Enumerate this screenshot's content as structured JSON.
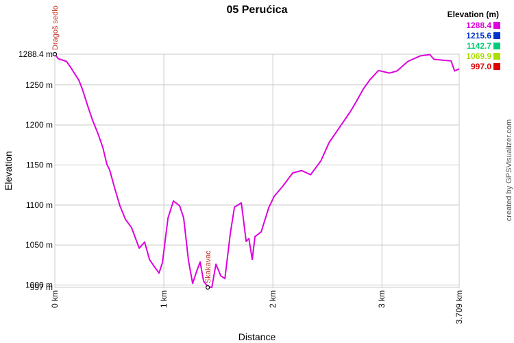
{
  "chart_data": {
    "type": "line",
    "title": "05 Perućica",
    "xlabel": "Distance",
    "ylabel": "Elevation",
    "x": [
      0,
      0.031,
      0.107,
      0.151,
      0.182,
      0.22,
      0.252,
      0.302,
      0.346,
      0.396,
      0.44,
      0.478,
      0.503,
      0.547,
      0.597,
      0.648,
      0.704,
      0.774,
      0.824,
      0.868,
      0.918,
      0.956,
      0.987,
      1.038,
      1.088,
      1.145,
      1.182,
      1.226,
      1.264,
      1.302,
      1.333,
      1.365,
      1.403,
      1.44,
      1.478,
      1.522,
      1.56,
      1.61,
      1.648,
      1.711,
      1.755,
      1.78,
      1.811,
      1.836,
      1.893,
      1.962,
      2.013,
      2.088,
      2.182,
      2.264,
      2.346,
      2.44,
      2.516,
      2.629,
      2.711,
      2.767,
      2.83,
      2.893,
      2.969,
      3.069,
      3.138,
      3.239,
      3.352,
      3.44,
      3.478,
      3.553,
      3.635,
      3.667,
      3.709
    ],
    "series": [
      {
        "values": [
          1288.4,
          1282.8,
          1279.4,
          1270.8,
          1264,
          1256,
          1245,
          1223.6,
          1206,
          1189,
          1172,
          1150.6,
          1143.8,
          1122,
          1099,
          1082,
          1071.7,
          1046,
          1053.7,
          1032,
          1021.9,
          1015,
          1028,
          1083.7,
          1105,
          1099,
          1083.7,
          1030.5,
          1002,
          1017.6,
          1028.8,
          1004.7,
          998,
          997,
          1026,
          1011.6,
          1008,
          1064.8,
          1097.4,
          1102.6,
          1054.5,
          1058,
          1032,
          1060.5,
          1066.5,
          1096.6,
          1111,
          1123,
          1140,
          1143,
          1137.8,
          1155,
          1178,
          1200.4,
          1216.7,
          1229.6,
          1245,
          1257,
          1268,
          1264.8,
          1267.4,
          1279.4,
          1286.3,
          1288,
          1282,
          1281,
          1280,
          1267.4,
          1270
        ]
      }
    ],
    "xlim": [
      0,
      3.709
    ],
    "xticks": [
      {
        "value": 0,
        "label": "0 km"
      },
      {
        "value": 1,
        "label": "1 km"
      },
      {
        "value": 2,
        "label": "2 km"
      },
      {
        "value": 3,
        "label": "3 km"
      },
      {
        "value": 3.709,
        "label": "3.709 km"
      }
    ],
    "ylim": [
      997,
      1288.4
    ],
    "yticks": [
      {
        "value": 997,
        "label": "997 m"
      },
      {
        "value": 1000,
        "label": "1000 m"
      },
      {
        "value": 1050,
        "label": "1050 m"
      },
      {
        "value": 1100,
        "label": "1100 m"
      },
      {
        "value": 1150,
        "label": "1150 m"
      },
      {
        "value": 1200,
        "label": "1200 m"
      },
      {
        "value": 1250,
        "label": "1250 m"
      },
      {
        "value": 1288.4,
        "label": "1288.4 m"
      }
    ],
    "grid": true,
    "legend_title": "Elevation (m)",
    "legend": [
      {
        "value": 1288.4,
        "label": "1288.4",
        "color": "#dd00dd"
      },
      {
        "value": 1215.6,
        "label": "1215.6",
        "color": "#0033cc"
      },
      {
        "value": 1142.7,
        "label": "1142.7",
        "color": "#00cc77"
      },
      {
        "value": 1069.9,
        "label": "1069.9",
        "color": "#aadd00"
      },
      {
        "value": 997,
        "label": "997.0",
        "color": "#dd0000"
      }
    ],
    "annotations": [
      {
        "text": "Dragoš sedlo",
        "x": 0,
        "y": 1288.4
      },
      {
        "text": "Skakavac",
        "x": 1.403,
        "y": 997
      }
    ],
    "credit": "created by GPSVisualizer.com"
  }
}
